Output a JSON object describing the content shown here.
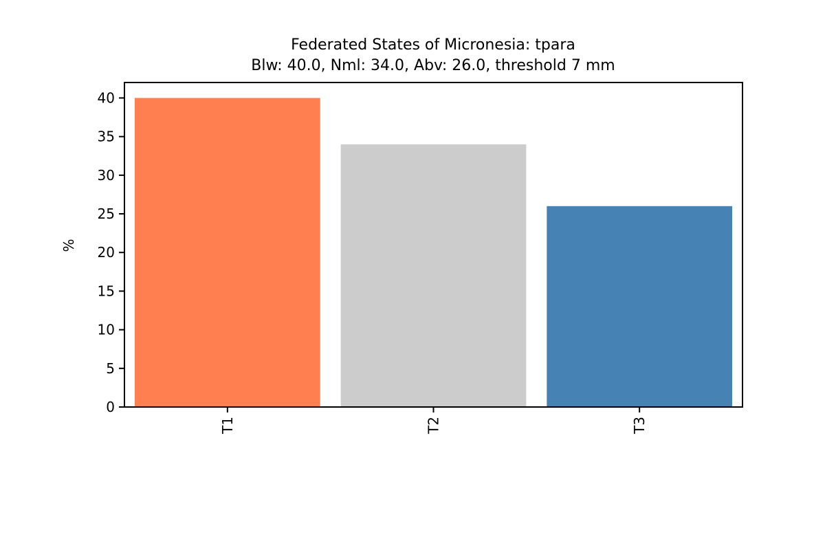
{
  "chart_data": {
    "type": "bar",
    "title": "Federated States of Micronesia: tpara",
    "subtitle": "Blw: 40.0, Nml: 34.0, Abv: 26.0, threshold 7 mm",
    "xlabel": "",
    "ylabel": "%",
    "categories": [
      "T1",
      "T2",
      "T3"
    ],
    "values": [
      40.0,
      34.0,
      26.0
    ],
    "colors": [
      "#ff7f50",
      "#cccccc",
      "#4682b4"
    ],
    "ylim": [
      0,
      42
    ],
    "yticks": [
      0,
      5,
      10,
      15,
      20,
      25,
      30,
      35,
      40
    ],
    "grid": false,
    "legend": "none"
  }
}
